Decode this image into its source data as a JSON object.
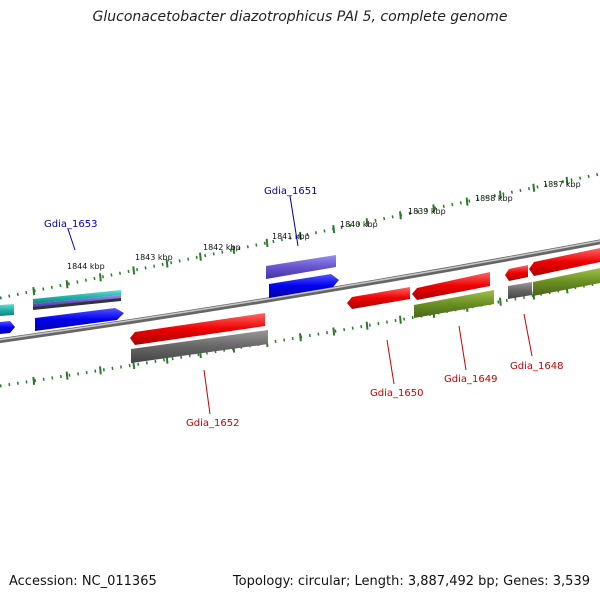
{
  "title": "Gluconacetobacter diazotrophicus PAI 5, complete genome",
  "footer": {
    "accession": "Accession: NC_011365",
    "summary": "Topology: circular; Length: 3,887,492 bp; Genes: 3,539"
  },
  "scale_labels": [
    "1837 kbp",
    "1838 kbp",
    "1839 kbp",
    "1840 kbp",
    "1841 kbp",
    "1842 kbp",
    "1843 kbp",
    "1844 kbp"
  ],
  "gene_labels": {
    "top": [
      "Gdia_1653",
      "Gdia_1651"
    ],
    "bottom": [
      "Gdia_1652",
      "Gdia_1650",
      "Gdia_1649",
      "Gdia_1648"
    ]
  },
  "colors": {
    "forward_label": "#0000aa",
    "reverse_label": "#cc0000",
    "cds_blue": "#0000ee",
    "cds_red": "#ee0000",
    "cds_olive": "#6b8e23",
    "cds_gray": "#666666",
    "cds_purple": "#6655cc",
    "cds_cyan": "#20b2aa",
    "backbone": "#888888",
    "ticks": "#2a7a2a"
  }
}
